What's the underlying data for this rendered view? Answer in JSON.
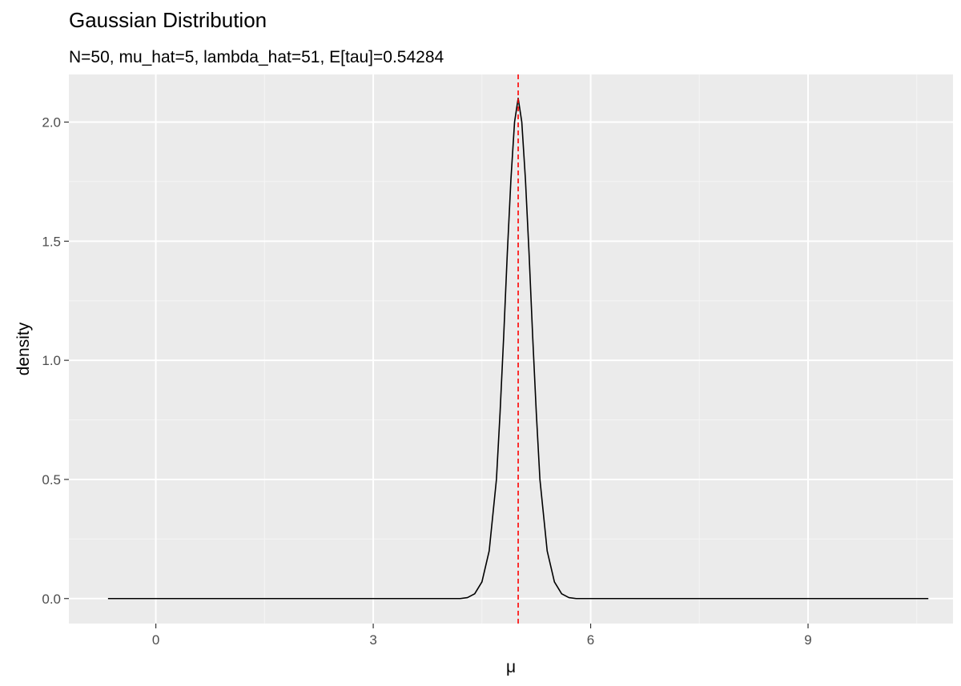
{
  "chart_data": {
    "type": "line",
    "title": "Gaussian Distribution",
    "subtitle": "N=50, mu_hat=5, lambda_hat=51, E[tau]=0.54284",
    "xlabel": "μ",
    "ylabel": "density",
    "xlim": [
      -1.2,
      11.0
    ],
    "ylim": [
      -0.105,
      2.2
    ],
    "x_ticks": [
      0,
      3,
      6,
      9
    ],
    "x_tick_labels": [
      "0",
      "3",
      "6",
      "9"
    ],
    "x_minor_ticks": [
      1.5,
      4.5,
      7.5,
      10.5
    ],
    "y_ticks": [
      0.0,
      0.5,
      1.0,
      1.5,
      2.0
    ],
    "y_tick_labels": [
      "0.0",
      "0.5",
      "1.0",
      "1.5",
      "2.0"
    ],
    "y_minor_ticks": [
      0.25,
      0.75,
      1.25,
      1.75
    ],
    "grid": true,
    "series": [
      {
        "color": "#000000",
        "x": [
          -0.66,
          4.2,
          4.3,
          4.4,
          4.5,
          4.6,
          4.7,
          4.75,
          4.8,
          4.85,
          4.9,
          4.95,
          5.0,
          5.05,
          5.1,
          5.15,
          5.2,
          5.25,
          5.3,
          5.4,
          5.5,
          5.6,
          5.7,
          5.8,
          10.66
        ],
        "y": [
          0.0,
          0.0,
          0.004,
          0.02,
          0.07,
          0.2,
          0.5,
          0.78,
          1.1,
          1.45,
          1.76,
          2.0,
          2.1,
          2.0,
          1.76,
          1.45,
          1.1,
          0.78,
          0.5,
          0.2,
          0.07,
          0.02,
          0.004,
          0.0,
          0.0
        ]
      }
    ],
    "reference_line": {
      "orientation": "vertical",
      "x": 5.0,
      "color": "#ff0000",
      "style": "dashed"
    }
  }
}
